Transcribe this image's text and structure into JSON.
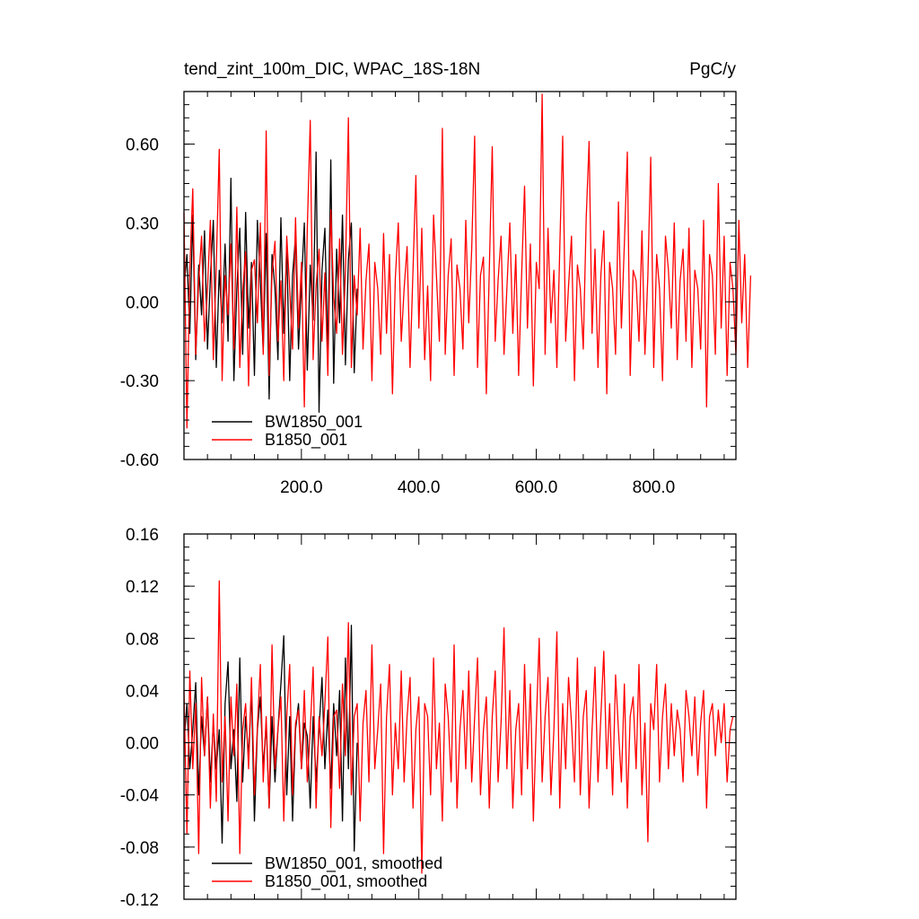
{
  "chart_data": [
    {
      "type": "line",
      "title": "tend_zint_100m_DIC, WPAC_18S-18N",
      "units": "PgC/y",
      "xlim": [
        0,
        940
      ],
      "ylim": [
        -0.6,
        0.8
      ],
      "x_ticks": [
        200,
        400,
        600,
        800
      ],
      "x_tick_labels": [
        "200.0",
        "400.0",
        "600.0",
        "800.0"
      ],
      "y_ticks": [
        -0.6,
        -0.3,
        0.0,
        0.3,
        0.6
      ],
      "y_tick_labels": [
        "-0.60",
        "-0.30",
        "0.00",
        "0.30",
        "0.60"
      ],
      "legend_position": "bottom-left",
      "series": [
        {
          "name": "BW1850_001",
          "color": "#000000",
          "x_start": 0,
          "x_step": 5,
          "values": [
            0.05,
            0.18,
            -0.12,
            0.33,
            -0.22,
            0.14,
            -0.05,
            0.27,
            -0.18,
            0.09,
            0.31,
            -0.25,
            0.12,
            -0.08,
            0.22,
            -0.15,
            0.47,
            -0.3,
            0.05,
            0.28,
            -0.2,
            0.34,
            -0.1,
            0.15,
            -0.28,
            0.31,
            0.08,
            -0.19,
            0.26,
            -0.37,
            0.18,
            0.05,
            -0.22,
            0.32,
            -0.12,
            0.21,
            -0.3,
            0.1,
            0.25,
            -0.18,
            0.07,
            0.3,
            -0.26,
            0.14,
            -0.07,
            0.57,
            -0.42,
            0.12,
            0.28,
            -0.2,
            0.54,
            -0.31,
            0.2,
            -0.08,
            0.33,
            -0.24,
            0.16,
            0.3,
            -0.27,
            0.05
          ]
        },
        {
          "name": "B1850_001",
          "color": "#ff0000",
          "x_start": 0,
          "x_step": 5,
          "values": [
            0.34,
            -0.48,
            0.12,
            0.43,
            -0.2,
            0.08,
            0.25,
            -0.15,
            0.05,
            0.31,
            -0.22,
            0.14,
            0.58,
            -0.3,
            0.1,
            -0.05,
            0.22,
            -0.18,
            0.36,
            -0.25,
            0.04,
            0.19,
            -0.32,
            0.12,
            0.16,
            -0.08,
            0.3,
            -0.2,
            0.65,
            -0.28,
            0.11,
            0.23,
            -0.15,
            0.08,
            -0.3,
            0.25,
            0.05,
            -0.18,
            0.32,
            -0.1,
            0.15,
            -0.4,
            0.28,
            0.69,
            -0.22,
            0.06,
            0.2,
            -0.15,
            0.11,
            -0.28,
            0.35,
            0.02,
            -0.12,
            0.24,
            -0.2,
            0.12,
            0.7,
            -0.25,
            0.1,
            -0.05,
            0.28,
            -0.18,
            0.08,
            0.22,
            -0.3,
            0.15,
            0.05,
            -0.2,
            0.26,
            -0.12,
            0.18,
            -0.35,
            0.09,
            0.3,
            -0.15,
            0.05,
            0.21,
            -0.25,
            0.12,
            0.48,
            -0.1,
            0.28,
            -0.22,
            0.06,
            -0.3,
            0.33,
            0.1,
            -0.15,
            0.66,
            -0.2,
            0.1,
            0.24,
            -0.28,
            0.14,
            0.05,
            -0.18,
            0.31,
            -0.08,
            0.2,
            0.63,
            -0.25,
            0.1,
            0.17,
            -0.35,
            0.12,
            0.59,
            -0.15,
            0.08,
            0.25,
            -0.2,
            0.05,
            0.3,
            -0.12,
            0.18,
            -0.28,
            0.1,
            0.44,
            -0.1,
            0.22,
            -0.32,
            0.15,
            0.05,
            0.79,
            -0.2,
            0.28,
            -0.08,
            0.12,
            -0.25,
            0.2,
            0.63,
            -0.15,
            0.06,
            0.25,
            -0.3,
            0.14,
            0.05,
            -0.18,
            0.32,
            0.61,
            -0.12,
            0.2,
            -0.25,
            0.1,
            0.27,
            -0.35,
            0.15,
            0.05,
            -0.2,
            0.38,
            -0.1,
            0.22,
            0.57,
            -0.28,
            0.12,
            0.08,
            -0.15,
            0.27,
            -0.2,
            0.1,
            0.55,
            -0.25,
            0.18,
            0.05,
            -0.3,
            0.25,
            0.12,
            -0.1,
            0.3,
            -0.22,
            0.08,
            0.2,
            -0.15,
            0.28,
            -0.25,
            0.12,
            0.05,
            -0.18,
            0.31,
            -0.4,
            0.18,
            0.1,
            -0.2,
            0.45,
            -0.1,
            0.25,
            -0.28,
            0.15,
            0.05,
            -0.2,
            0.31,
            -0.08,
            0.18,
            -0.25,
            0.1
          ]
        }
      ]
    },
    {
      "type": "line",
      "title": "",
      "xlim": [
        0,
        940
      ],
      "ylim": [
        -0.12,
        0.16
      ],
      "y_ticks": [
        -0.12,
        -0.08,
        -0.04,
        0.0,
        0.04,
        0.08,
        0.12,
        0.16
      ],
      "y_tick_labels": [
        "-0.12",
        "-0.08",
        "-0.04",
        "0.00",
        "0.04",
        "0.08",
        "0.12",
        "0.16"
      ],
      "legend_position": "bottom-left",
      "series": [
        {
          "name": "BW1850_001, smoothed",
          "color": "#000000",
          "x_start": 0,
          "x_step": 5,
          "values": [
            0.0,
            0.03,
            -0.02,
            0.01,
            0.046,
            -0.04,
            0.02,
            -0.01,
            0.035,
            -0.03,
            0.015,
            -0.02,
            0.01,
            -0.077,
            0.03,
            0.062,
            -0.02,
            0.01,
            -0.045,
            0.065,
            -0.03,
            0.02,
            -0.01,
            0.04,
            -0.06,
            0.01,
            0.035,
            -0.02,
            0.015,
            -0.05,
            0.02,
            -0.03,
            0.01,
            0.045,
            0.082,
            -0.04,
            0.02,
            -0.06,
            0.01,
            0.03,
            -0.02,
            0.015,
            0.005,
            -0.05,
            0.02,
            -0.03,
            0.01,
            0.05,
            -0.02,
            0.025,
            -0.035,
            0.03,
            -0.01,
            0.04,
            -0.06,
            0.065,
            -0.02,
            0.09,
            -0.083,
            0.0
          ]
        },
        {
          "name": "B1850_001, smoothed",
          "color": "#ff0000",
          "x_start": 0,
          "x_step": 5,
          "values": [
            0.04,
            -0.07,
            0.055,
            -0.02,
            0.03,
            -0.085,
            0.05,
            -0.01,
            0.035,
            -0.05,
            0.022,
            -0.045,
            0.124,
            -0.03,
            0.02,
            -0.06,
            0.035,
            -0.01,
            0.045,
            -0.085,
            0.01,
            0.03,
            -0.02,
            0.05,
            -0.04,
            0.012,
            0.06,
            -0.03,
            0.02,
            -0.05,
            0.075,
            -0.02,
            0.01,
            0.035,
            -0.06,
            0.02,
            0.06,
            -0.04,
            0.015,
            0.025,
            -0.02,
            0.04,
            -0.03,
            0.01,
            0.058,
            -0.05,
            0.02,
            -0.01,
            0.03,
            0.081,
            -0.065,
            0.02,
            0.025,
            -0.035,
            0.045,
            -0.01,
            0.092,
            -0.04,
            0.02,
            0.03,
            -0.06,
            0.015,
            0.04,
            -0.03,
            0.075,
            -0.02,
            0.01,
            0.045,
            -0.085,
            0.02,
            0.06,
            -0.04,
            0.015,
            -0.02,
            0.055,
            -0.03,
            0.02,
            0.05,
            -0.05,
            0.01,
            0.035,
            -0.1,
            0.03,
            0.02,
            -0.04,
            0.065,
            -0.02,
            0.015,
            -0.06,
            0.045,
            0.02,
            -0.03,
            0.075,
            -0.05,
            0.01,
            0.04,
            -0.02,
            0.055,
            -0.03,
            0.02,
            0.065,
            -0.04,
            0.01,
            0.035,
            -0.05,
            0.02,
            0.055,
            -0.03,
            0.015,
            0.088,
            -0.02,
            0.04,
            -0.05,
            0.01,
            0.03,
            -0.04,
            0.06,
            -0.02,
            0.045,
            -0.06,
            0.015,
            0.08,
            -0.03,
            0.02,
            0.05,
            -0.04,
            0.01,
            0.085,
            -0.05,
            0.03,
            -0.02,
            0.05,
            0.015,
            -0.03,
            0.065,
            -0.04,
            0.02,
            0.04,
            -0.05,
            0.01,
            0.058,
            -0.03,
            0.02,
            0.07,
            -0.02,
            0.03,
            -0.04,
            0.052,
            0.01,
            -0.03,
            0.045,
            -0.05,
            0.02,
            0.035,
            -0.02,
            0.06,
            -0.04,
            0.015,
            -0.076,
            0.03,
            0.01,
            0.06,
            -0.03,
            0.02,
            0.045,
            -0.02,
            0.03,
            -0.01,
            0.025,
            0.01,
            -0.03,
            0.04,
            0.02,
            -0.01,
            0.035,
            -0.025,
            0.015,
            0.04,
            -0.05,
            0.02,
            0.03,
            -0.01,
            0.025,
            0.0,
            0.03,
            -0.03,
            0.01,
            0.02
          ]
        }
      ]
    }
  ]
}
